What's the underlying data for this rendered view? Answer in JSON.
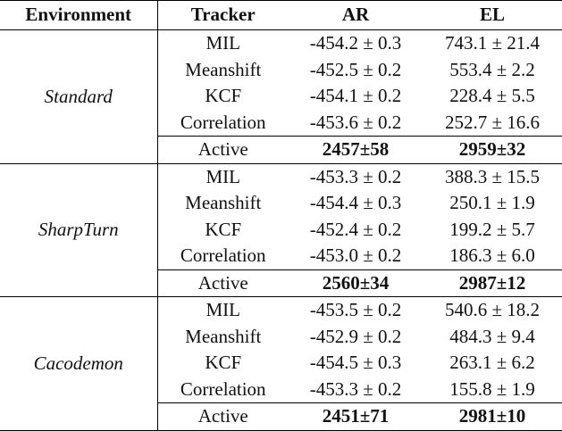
{
  "headers": {
    "environment": "Environment",
    "tracker": "Tracker",
    "ar": "AR",
    "el": "EL"
  },
  "groups": [
    {
      "environment": "Standard",
      "rows": [
        {
          "tracker": "MIL",
          "ar": "-454.2 ± 0.3",
          "el": "743.1 ± 21.4"
        },
        {
          "tracker": "Meanshift",
          "ar": "-452.5 ± 0.2",
          "el": "553.4 ± 2.2"
        },
        {
          "tracker": "KCF",
          "ar": "-454.1 ± 0.2",
          "el": "228.4 ± 5.5"
        },
        {
          "tracker": "Correlation",
          "ar": "-453.6 ± 0.2",
          "el": "252.7 ± 16.6"
        },
        {
          "tracker": "Active",
          "ar": "2457±58",
          "el": "2959±32"
        }
      ]
    },
    {
      "environment": "SharpTurn",
      "rows": [
        {
          "tracker": "MIL",
          "ar": "-453.3 ± 0.2",
          "el": "388.3 ± 15.5"
        },
        {
          "tracker": "Meanshift",
          "ar": "-454.4 ± 0.3",
          "el": "250.1 ± 1.9"
        },
        {
          "tracker": "KCF",
          "ar": "-452.4 ± 0.2",
          "el": "199.2 ± 5.7"
        },
        {
          "tracker": "Correlation",
          "ar": "-453.0 ± 0.2",
          "el": "186.3 ± 6.0"
        },
        {
          "tracker": "Active",
          "ar": "2560±34",
          "el": "2987±12"
        }
      ]
    },
    {
      "environment": "Cacodemon",
      "rows": [
        {
          "tracker": "MIL",
          "ar": "-453.5 ± 0.2",
          "el": "540.6 ± 18.2"
        },
        {
          "tracker": "Meanshift",
          "ar": "-452.9 ± 0.2",
          "el": "484.3 ± 9.4"
        },
        {
          "tracker": "KCF",
          "ar": "-454.5 ± 0.3",
          "el": "263.1 ± 6.2"
        },
        {
          "tracker": "Correlation",
          "ar": "-453.3 ± 0.2",
          "el": "155.8 ± 1.9"
        },
        {
          "tracker": "Active",
          "ar": "2451±71",
          "el": "2981±10"
        }
      ]
    }
  ]
}
